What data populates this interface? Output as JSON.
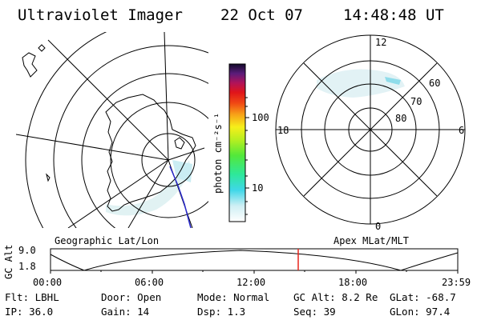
{
  "header": {
    "title": "Ultraviolet Imager",
    "date": "22 Oct 07",
    "time": "14:48:48 UT"
  },
  "colorbar": {
    "unit": "photon cm⁻²s⁻¹",
    "tick_100": "100",
    "tick_10": "10"
  },
  "left_map": {
    "caption": "Geographic Lat/Lon"
  },
  "right_map": {
    "caption": "Apex MLat/MLT",
    "mlt_top": "12",
    "mlt_left": "18",
    "mlt_right": "6",
    "mlt_bottom": "0",
    "lat_60": "60",
    "lat_70": "70",
    "lat_80": "80"
  },
  "altitude_plot": {
    "ylabel": "GC Alt",
    "y_top": "9.0",
    "y_bottom": "1.8",
    "x_ticks": [
      "00:00",
      "06:00",
      "12:00",
      "18:00",
      "23:59"
    ],
    "marker_time": "14:48",
    "marker_color": "#e8251c"
  },
  "info": {
    "flt": "Flt: LBHL",
    "door": "Door: Open",
    "mode": "Mode: Normal",
    "gcalt": "GC Alt: 8.2 Re",
    "glat": "GLat: -68.7",
    "ip": "IP: 36.0",
    "gain": "Gain: 14",
    "dsp": "Dsp:   1.3",
    "seq": "Seq: 39",
    "glon": "GLon:  97.4"
  }
}
